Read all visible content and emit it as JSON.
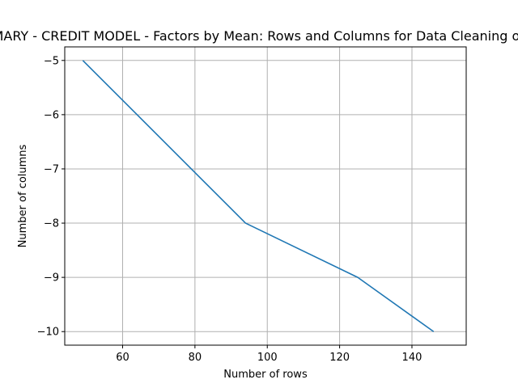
{
  "chart_data": {
    "type": "line",
    "title": "SUMMARY - CREDIT MODEL - Factors by Mean: Rows and Columns for Data Cleaning of Credit",
    "xlabel": "Number of rows",
    "ylabel": "Number of columns",
    "xlim": [
      44,
      155
    ],
    "ylim": [
      -10.25,
      -4.75
    ],
    "xticks": [
      60,
      80,
      100,
      120,
      140
    ],
    "yticks": [
      -5,
      -6,
      -7,
      -8,
      -9,
      -10
    ],
    "xtick_labels": [
      "60",
      "80",
      "100",
      "120",
      "140"
    ],
    "ytick_labels": [
      "−5",
      "−6",
      "−7",
      "−8",
      "−9",
      "−10"
    ],
    "grid": true,
    "series": [
      {
        "color": "#1f77b4",
        "x": [
          49,
          94,
          125,
          146
        ],
        "y": [
          -5,
          -8,
          -9,
          -10
        ]
      }
    ]
  }
}
